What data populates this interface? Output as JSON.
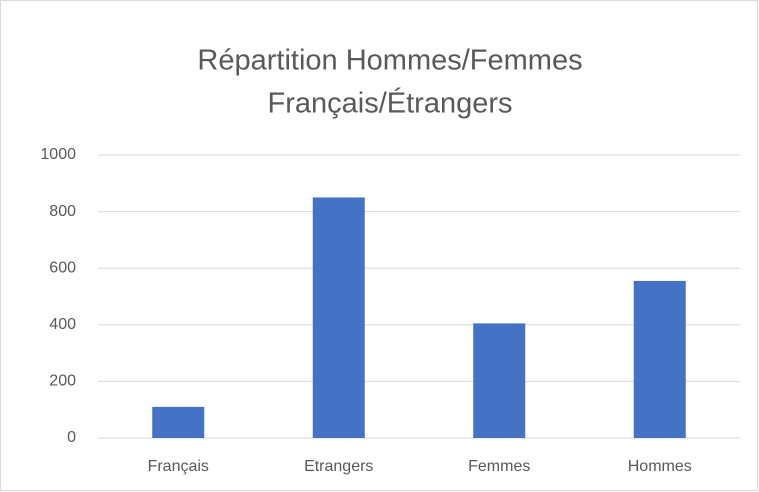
{
  "chart_data": {
    "type": "bar",
    "title": [
      "Répartition Hommes/Femmes",
      "Français/Étrangers"
    ],
    "categories": [
      "Français",
      "Etrangers",
      "Femmes",
      "Hommes"
    ],
    "values": [
      110,
      850,
      405,
      555
    ],
    "color": "#4472c4",
    "ylim": [
      0,
      1000
    ],
    "yticks": [
      0,
      200,
      400,
      600,
      800,
      1000
    ],
    "grid": true
  }
}
